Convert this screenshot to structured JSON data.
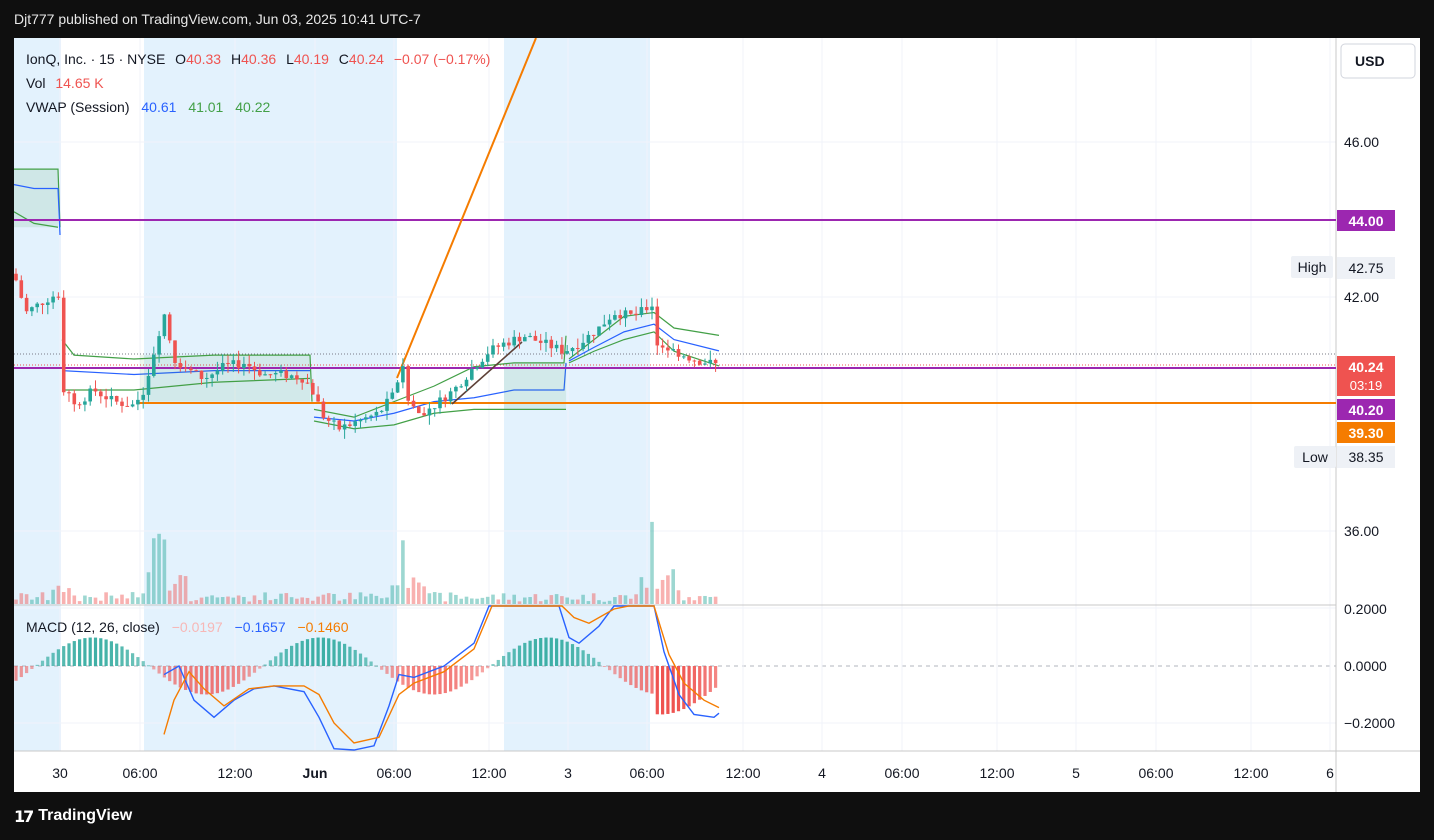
{
  "header": {
    "published": "Djt777 published on TradingView.com, Jun 03, 2025 10:41 UTC-7"
  },
  "footer": {
    "brand": "TradingView"
  },
  "legend": {
    "symbol": "IonQ, Inc. · 15 · NYSE",
    "o_label": "O",
    "o_value": "40.33",
    "h_label": "H",
    "h_value": "40.36",
    "l_label": "L",
    "l_value": "40.19",
    "c_label": "C",
    "c_value": "40.24",
    "change": "−0.07 (−0.17%)",
    "vol_label": "Vol",
    "vol_value": "14.65 K",
    "vwap_label": "VWAP (Session)",
    "vwap_values": [
      "40.61",
      "41.01",
      "40.22"
    ],
    "macd_label": "MACD (12, 26, close)",
    "macd_values": [
      "−0.0197",
      "−0.1657",
      "−0.1460"
    ]
  },
  "currency_button": "USD",
  "price_labels": {
    "high_label": "High",
    "high_value": "42.75",
    "low_label": "Low",
    "low_value": "38.35",
    "last_price": "40.24",
    "countdown": "03:19",
    "level_purple_top": "44.00",
    "level_purple_mid": "40.20",
    "level_orange": "39.30"
  },
  "colors": {
    "up": "#26a69a",
    "down": "#ef5350",
    "vwap": "#2962ff",
    "band": "#43a047",
    "purple": "#9c27b0",
    "orange": "#f57c00",
    "session": "#e3f2fd"
  },
  "chart_data": [
    {
      "type": "candlestick",
      "title": "IonQ, Inc. · 15 · NYSE",
      "ylim": [
        34.4,
        48.5
      ],
      "y_ticks": [
        "46.00",
        "42.00",
        "36.00"
      ],
      "x_ticks": [
        "30",
        "06:00",
        "12:00",
        "Jun",
        "06:00",
        "12:00",
        "3",
        "06:00",
        "12:00",
        "4",
        "06:00",
        "12:00",
        "5",
        "06:00",
        "12:00",
        "6"
      ],
      "series": [
        {
          "name": "VWAP (Session)",
          "values": [
            40.61,
            41.01,
            40.22
          ]
        }
      ],
      "horizontal_lines": [
        44.0,
        40.2,
        39.3
      ],
      "last": 40.24,
      "high": 42.75,
      "low": 38.35
    },
    {
      "type": "bar",
      "title": "Vol",
      "last": "14.65 K"
    },
    {
      "type": "line",
      "title": "MACD (12, 26, close)",
      "y_ticks": [
        "0.2000",
        "0.0000",
        "−0.2000"
      ],
      "ylim": [
        -0.3,
        0.22
      ],
      "series": [
        {
          "name": "Histogram",
          "values": [
            -0.0197
          ]
        },
        {
          "name": "MACD",
          "values": [
            -0.1657
          ]
        },
        {
          "name": "Signal",
          "values": [
            -0.146
          ]
        }
      ]
    }
  ]
}
